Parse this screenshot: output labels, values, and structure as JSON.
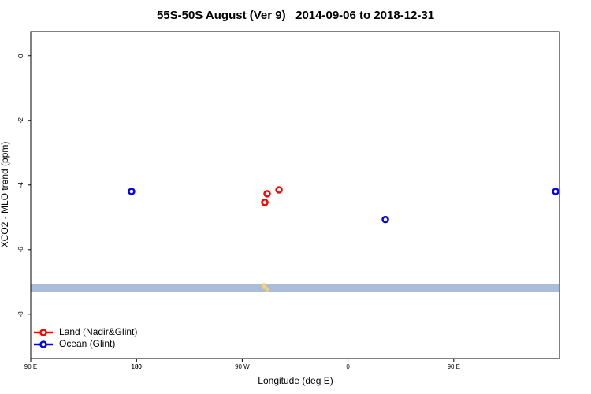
{
  "chart_data": {
    "type": "scatter",
    "title": "55S-50S August (Ver 9)   2014-09-06 to 2018-12-31",
    "x_label": "Longitude (deg E)",
    "y_label": "XCO2 - MLO trend (ppm)",
    "xlim": [
      90,
      540
    ],
    "xticks": [
      {
        "value": 90,
        "label": "90 E"
      },
      180,
      {
        "value": 270,
        "label": "90 W"
      },
      {
        "value": 360,
        "label": "0"
      },
      {
        "value": 450,
        "label": "90 E"
      },
      180.0001
    ],
    "ylim": [
      -9.37,
      0.75
    ],
    "yticks": [
      0,
      -2,
      -4,
      -6,
      -8
    ],
    "legend": "bottom-left",
    "series": [
      {
        "name": "Land (Nadir&Glint)",
        "color": "#ff0000",
        "x": [
          289.2,
          291.2,
          301.3
        ],
        "values": [
          -4.54,
          -4.27,
          -4.15
        ]
      },
      {
        "name": "Ocean (Glint)",
        "color": "#0000ee",
        "x": [
          175.8,
          391.8,
          536.7
        ],
        "values": [
          -4.2,
          -5.07,
          -4.2
        ]
      }
    ]
  }
}
